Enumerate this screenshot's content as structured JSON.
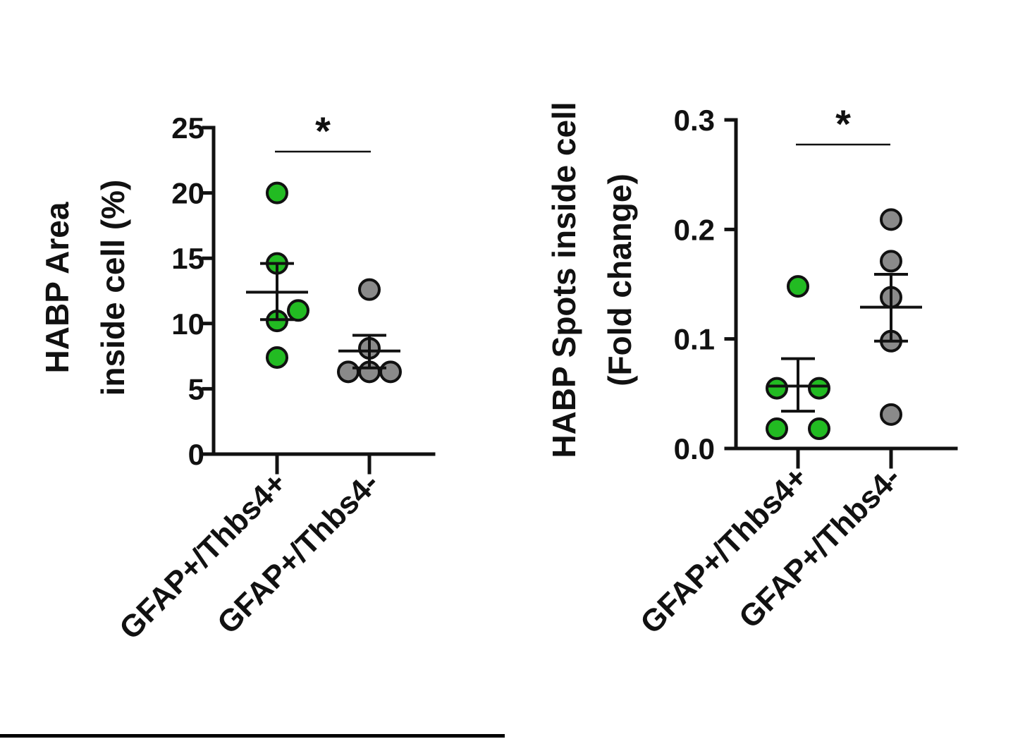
{
  "colors": {
    "group1": "#22bb22",
    "group2": "#8a8a8a",
    "outline": "#111111"
  },
  "chart_data": [
    {
      "type": "scatter",
      "title": "",
      "xlabel": "",
      "ylabel": [
        "HABP Area",
        "inside cell (%)"
      ],
      "ylim": [
        0,
        25
      ],
      "yticks": [
        0,
        5,
        10,
        15,
        20,
        25
      ],
      "ytick_labels": [
        "0",
        "5",
        "10",
        "15",
        "20",
        "25"
      ],
      "categories": [
        "GFAP+/Thbs4+",
        "GFAP+/Thbs4-"
      ],
      "series": [
        {
          "color": "#22bb22",
          "points": [
            20.0,
            14.6,
            10.2,
            11.0,
            7.4
          ],
          "mean": 12.4,
          "sem_low": 10.3,
          "sem_high": 14.6
        },
        {
          "color": "#8a8a8a",
          "points": [
            12.6,
            8.1,
            6.3,
            6.3,
            6.3
          ],
          "mean": 7.9,
          "sem_low": 6.6,
          "sem_high": 9.1
        }
      ],
      "significance": "*"
    },
    {
      "type": "scatter",
      "title": "",
      "xlabel": "",
      "ylabel": [
        "HABP Spots inside cell",
        "(Fold change)"
      ],
      "ylim": [
        0,
        0.3
      ],
      "yticks": [
        0,
        0.1,
        0.2,
        0.3
      ],
      "ytick_labels": [
        "0.0",
        "0.1",
        "0.2",
        "0.3"
      ],
      "categories": [
        "GFAP+/Thbs4+",
        "GFAP+/Thbs4-"
      ],
      "series": [
        {
          "color": "#22bb22",
          "points": [
            0.148,
            0.055,
            0.055,
            0.018,
            0.018
          ],
          "mean": 0.057,
          "sem_low": 0.034,
          "sem_high": 0.082
        },
        {
          "color": "#8a8a8a",
          "points": [
            0.209,
            0.171,
            0.138,
            0.098,
            0.031
          ],
          "mean": 0.129,
          "sem_low": 0.098,
          "sem_high": 0.159
        }
      ],
      "significance": "*"
    }
  ]
}
